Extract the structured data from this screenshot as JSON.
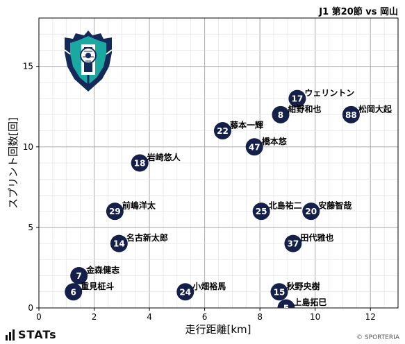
{
  "header": {
    "match_label": "J1 第20節 vs 岡山"
  },
  "brand": {
    "name": "STATs"
  },
  "copyright": "© SPORTERIA",
  "colors": {
    "marker": "#15204a",
    "marker_text": "#ffffff",
    "grid": "#bfbfbf",
    "logo_teal": "#1aa8a0",
    "logo_navy": "#14285a"
  },
  "chart_data": {
    "type": "scatter",
    "xlabel": "走行距離[km]",
    "ylabel": "スプリント回数[回]",
    "xlim": [
      0,
      13
    ],
    "ylim": [
      0,
      18
    ],
    "xticks": [
      0,
      2,
      4,
      6,
      8,
      10,
      12
    ],
    "yticks": [
      0,
      5,
      10,
      15
    ],
    "grid": true,
    "points": [
      {
        "number": "17",
        "name": "ウェリントン",
        "x": 9.35,
        "y": 13.0
      },
      {
        "number": "8",
        "name": "紺野和也",
        "x": 8.75,
        "y": 12.0
      },
      {
        "number": "88",
        "name": "松岡大起",
        "x": 11.3,
        "y": 12.0
      },
      {
        "number": "22",
        "name": "藤本一輝",
        "x": 6.65,
        "y": 11.0
      },
      {
        "number": "47",
        "name": "橋本悠",
        "x": 7.8,
        "y": 10.0
      },
      {
        "number": "18",
        "name": "岩崎悠人",
        "x": 3.65,
        "y": 9.0
      },
      {
        "number": "29",
        "name": "前嶋洋太",
        "x": 2.75,
        "y": 6.0
      },
      {
        "number": "25",
        "name": "北島祐二",
        "x": 8.05,
        "y": 6.0
      },
      {
        "number": "20",
        "name": "安藤智哉",
        "x": 9.85,
        "y": 6.0
      },
      {
        "number": "14",
        "name": "名古新太郎",
        "x": 2.9,
        "y": 4.0
      },
      {
        "number": "37",
        "name": "田代雅也",
        "x": 9.2,
        "y": 4.0
      },
      {
        "number": "7",
        "name": "金森健志",
        "x": 1.45,
        "y": 2.0
      },
      {
        "number": "6",
        "name": "重見柾斗",
        "x": 1.25,
        "y": 1.0
      },
      {
        "number": "24",
        "name": "小畑裕馬",
        "x": 5.3,
        "y": 1.0
      },
      {
        "number": "15",
        "name": "秋野央樹",
        "x": 8.7,
        "y": 1.0
      },
      {
        "number": "5",
        "name": "上島拓巳",
        "x": 8.95,
        "y": 0.0
      }
    ]
  }
}
